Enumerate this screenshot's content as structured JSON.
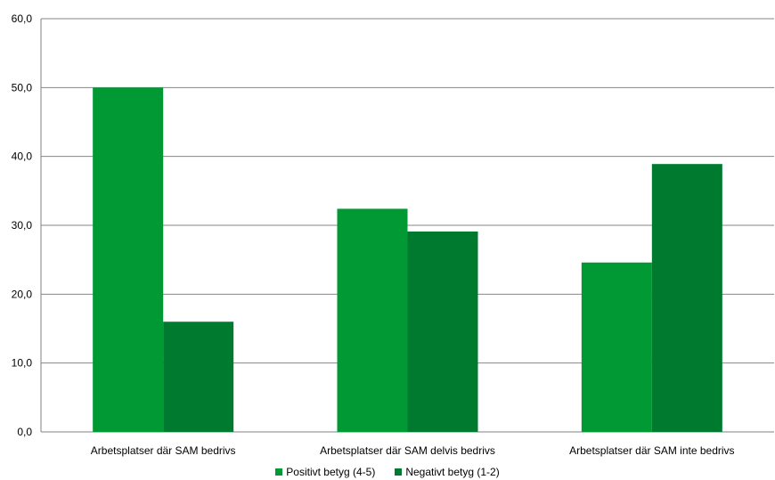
{
  "chart_data": {
    "type": "bar",
    "categories": [
      "Arbetsplatser där SAM bedrivs",
      "Arbetsplatser där SAM delvis bedrivs",
      "Arbetsplatser där SAM inte bedrivs"
    ],
    "series": [
      {
        "name": "Positivt betyg (4-5)",
        "color": "#009933",
        "values": [
          50.0,
          32.4,
          24.6
        ]
      },
      {
        "name": "Negativt betyg (1-2)",
        "color": "#007A2E",
        "values": [
          16.0,
          29.1,
          38.9
        ]
      }
    ],
    "yticks": [
      "0,0",
      "10,0",
      "20,0",
      "30,0",
      "40,0",
      "50,0",
      "60,0"
    ],
    "ylim": [
      0,
      60
    ],
    "grid": true,
    "legend_position": "bottom"
  }
}
